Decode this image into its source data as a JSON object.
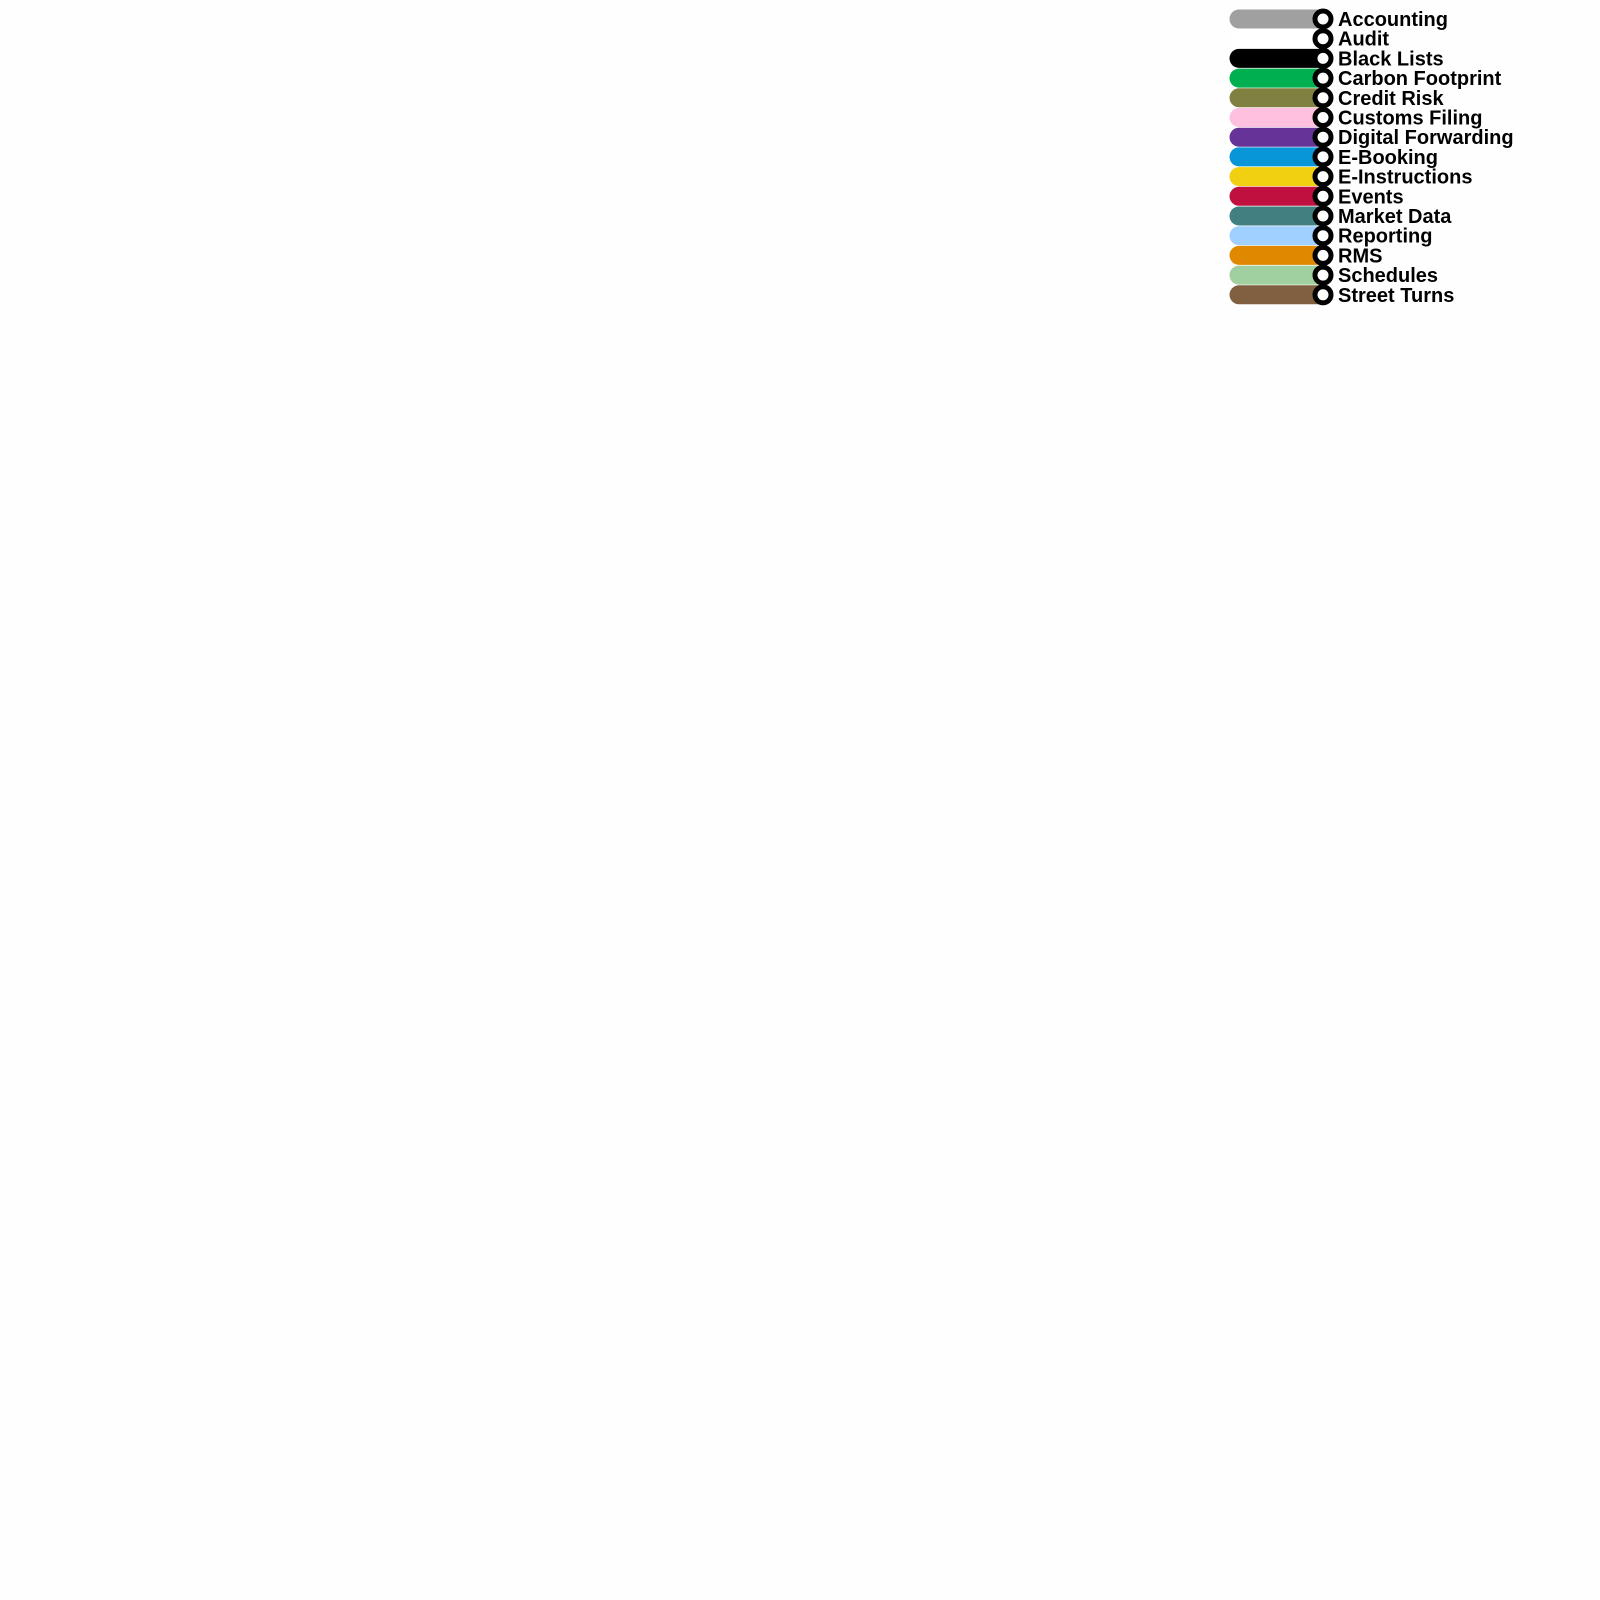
{
  "legend": {
    "items": [
      {
        "label": "Accounting",
        "color": "#a0a0a0"
      },
      {
        "label": "Audit",
        "color": "#ffffff"
      },
      {
        "label": "Black Lists",
        "color": "#000000"
      },
      {
        "label": "Carbon Footprint",
        "color": "#00b050"
      },
      {
        "label": "Credit Risk",
        "color": "#808040"
      },
      {
        "label": "Customs Filing",
        "color": "#ffc0e0"
      },
      {
        "label": "Digital Forwarding",
        "color": "#663399"
      },
      {
        "label": "E-Booking",
        "color": "#0896d8"
      },
      {
        "label": "E-Instructions",
        "color": "#f0d010"
      },
      {
        "label": "Events",
        "color": "#c01040"
      },
      {
        "label": "Market Data",
        "color": "#408080"
      },
      {
        "label": "Reporting",
        "color": "#a0d0ff"
      },
      {
        "label": "RMS",
        "color": "#e08800"
      },
      {
        "label": "Schedules",
        "color": "#a0d0a0"
      },
      {
        "label": "Street Turns",
        "color": "#806040"
      }
    ]
  }
}
